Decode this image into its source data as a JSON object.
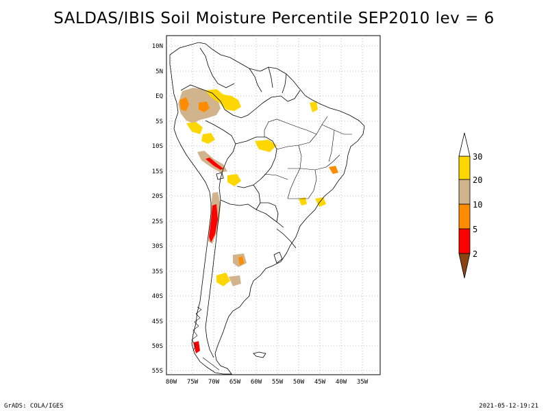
{
  "title": "SALDAS/IBIS Soil Moisture Percentile SEP2010 lev = 6",
  "footer_left": "GrADS: COLA/IGES",
  "footer_right": "2021-05-12-19:21",
  "axes": {
    "lat_labels": [
      "10N",
      "5N",
      "EQ",
      "5S",
      "10S",
      "15S",
      "20S",
      "25S",
      "30S",
      "35S",
      "40S",
      "45S",
      "50S",
      "55S"
    ],
    "lon_labels": [
      "80W",
      "75W",
      "70W",
      "65W",
      "60W",
      "55W",
      "50W",
      "45W",
      "40W",
      "35W"
    ]
  },
  "legend": {
    "labels": [
      "2",
      "5",
      "10",
      "20",
      "30"
    ],
    "colors": [
      "#8b4513",
      "#ff0000",
      "#ff8c00",
      "#d2b48c",
      "#ffd700",
      "#ffffff"
    ]
  },
  "colors": {
    "percentile_2": "#8b4513",
    "percentile_5": "#ff0000",
    "percentile_10": "#ff8c00",
    "percentile_20": "#d2b48c",
    "percentile_30": "#ffd700"
  }
}
